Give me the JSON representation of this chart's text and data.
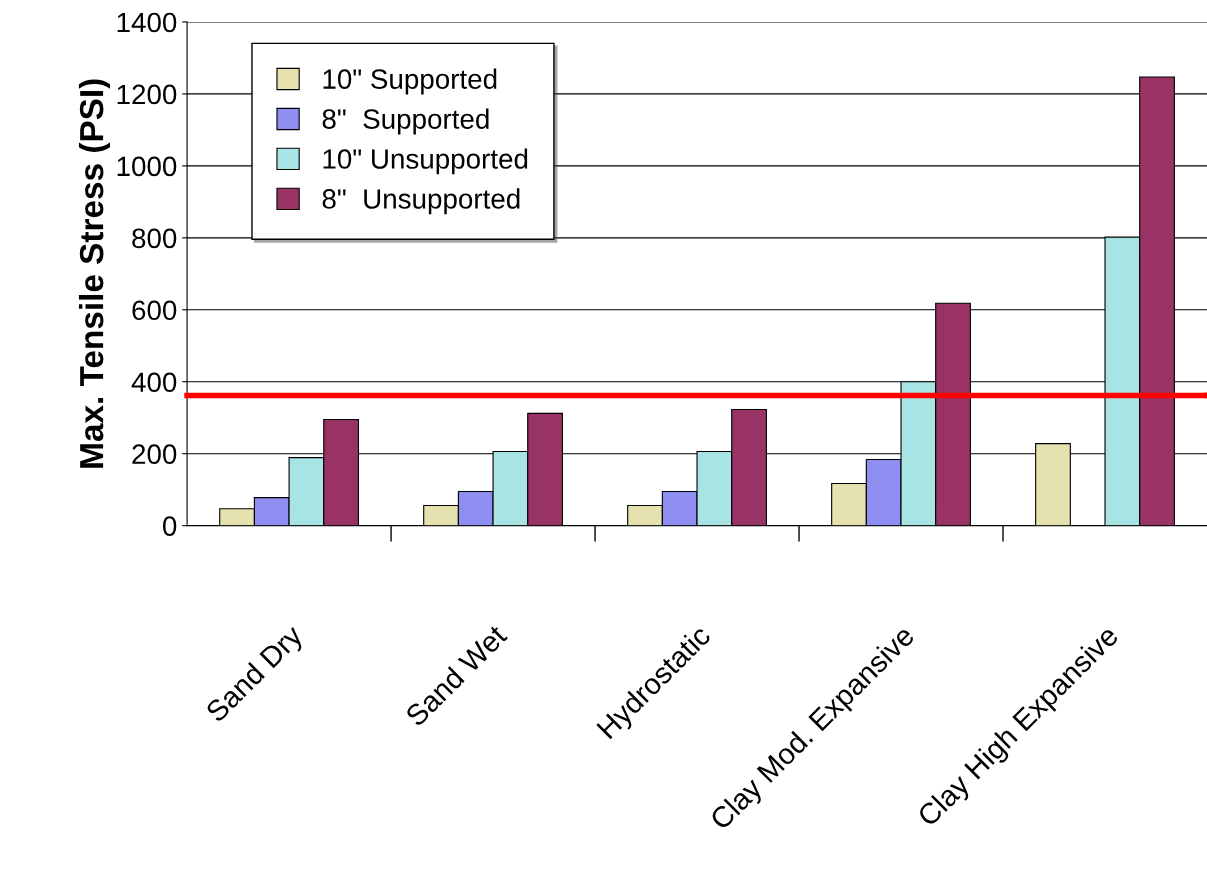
{
  "chart_data": {
    "type": "bar",
    "ylabel": "Max. Tensile Stress (PSI)",
    "categories": [
      "Sand Dry",
      "Sand Wet",
      "Hydrostatic",
      "Clay Mod. Expansive",
      "Clay High Expansive"
    ],
    "series": [
      {
        "name": "10\" Supported",
        "color": "#e6e2b0",
        "values": [
          47,
          56,
          56,
          117,
          228
        ]
      },
      {
        "name": "8\"  Supported",
        "color": "#8e8ef0",
        "values": [
          78,
          95,
          95,
          184,
          null
        ]
      },
      {
        "name": "10\" Unsupported",
        "color": "#a8e4e4",
        "values": [
          189,
          206,
          206,
          400,
          802
        ]
      },
      {
        "name": "8\"  Unsupported",
        "color": "#993366",
        "values": [
          295,
          312,
          323,
          618,
          1247
        ]
      }
    ],
    "ylim": [
      0,
      1400
    ],
    "yticks": [
      0,
      200,
      400,
      600,
      800,
      1000,
      1200,
      1400
    ],
    "ref_lines": [
      {
        "axis": "y",
        "value": 362,
        "color": "#ff0000"
      }
    ],
    "grid": "y",
    "legend": "top left"
  }
}
